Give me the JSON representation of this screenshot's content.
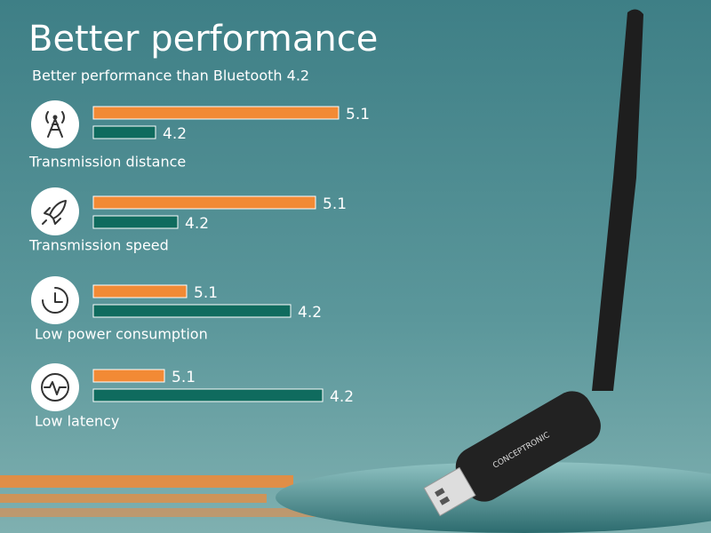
{
  "chart_data": {
    "type": "hbar",
    "title": "Better performance",
    "subtitle": "Better performance than Bluetooth 4.2",
    "categories": [
      "Transmission distance",
      "Transmission speed",
      "Low power consumption",
      "Low latency"
    ],
    "series": [
      {
        "name": "5.1",
        "color": "#f28a35",
        "values": [
          276,
          250,
          105,
          80
        ]
      },
      {
        "name": "4.2",
        "color": "#0f6b5e",
        "values": [
          70,
          95,
          222,
          258
        ]
      }
    ]
  },
  "product_label": "CONCEPTRONIC"
}
